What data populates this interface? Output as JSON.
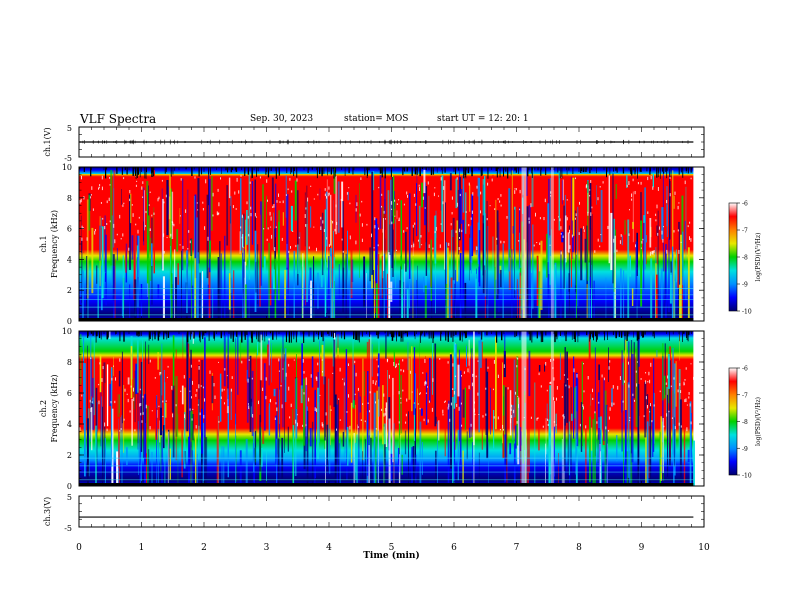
{
  "header": {
    "title": "VLF Spectra",
    "date": "Sep. 30, 2023",
    "station": "station= MOS",
    "start": "start  UT =   12: 20: 1"
  },
  "colors": {
    "colormap": [
      "#000070",
      "#0000ff",
      "#0090ff",
      "#00e0e0",
      "#00d000",
      "#e8e800",
      "#ff8000",
      "#ff0000",
      "#ffffff"
    ],
    "trace": "#000000"
  },
  "chart_data": [
    {
      "type": "line",
      "name": "ch1-voltage",
      "ylabel": "ch.1(V)",
      "yticks": [
        "5",
        "-5"
      ],
      "ylim": [
        -5,
        5
      ],
      "x_range": [
        0,
        10
      ],
      "data_end_min": 9.83,
      "values": [
        {
          "series": "ch.1",
          "x": [
            0,
            9.83
          ],
          "y": [
            0,
            0
          ]
        }
      ]
    },
    {
      "type": "heatmap",
      "name": "ch1-spectrogram",
      "ylabel_channel": "ch.1",
      "ylabel": "Frequency (kHz)",
      "yticks": [
        "0",
        "2",
        "4",
        "6",
        "8",
        "10"
      ],
      "ylim": [
        0,
        10
      ],
      "x_range": [
        0,
        10
      ],
      "data_end_min": 9.83,
      "intense_band_khz": [
        4.5,
        9.5
      ],
      "colorbar": {
        "label": "log(PSD)(V²/Hz)",
        "ticks": [
          "-6",
          "-7",
          "-8",
          "-9",
          "-10"
        ],
        "range": [
          -10,
          -6
        ]
      }
    },
    {
      "type": "heatmap",
      "name": "ch2-spectrogram",
      "ylabel_channel": "ch.2",
      "ylabel": "Frequency (kHz)",
      "yticks": [
        "0",
        "2",
        "4",
        "6",
        "8",
        "10"
      ],
      "ylim": [
        0,
        10
      ],
      "x_range": [
        0,
        10
      ],
      "data_end_min": 9.83,
      "intense_band_khz": [
        3.6,
        8.3
      ],
      "colorbar": {
        "label": "log(PSD)(V²/Hz)",
        "ticks": [
          "-6",
          "-7",
          "-8",
          "-9",
          "-10"
        ],
        "range": [
          -10,
          -6
        ]
      }
    },
    {
      "type": "line",
      "name": "ch3-voltage",
      "ylabel": "ch.3(V)",
      "yticks": [
        "5",
        "-5"
      ],
      "ylim": [
        -5,
        5
      ],
      "x_range": [
        0,
        10
      ],
      "data_end_min": 9.83,
      "values": [
        {
          "series": "ch.3",
          "x": [
            0,
            9.83
          ],
          "y": [
            -1.8,
            -1.8
          ]
        }
      ]
    }
  ],
  "x_axis": {
    "label": "Time (min)",
    "ticks": [
      "0",
      "1",
      "2",
      "3",
      "4",
      "5",
      "6",
      "7",
      "8",
      "9",
      "10"
    ]
  }
}
